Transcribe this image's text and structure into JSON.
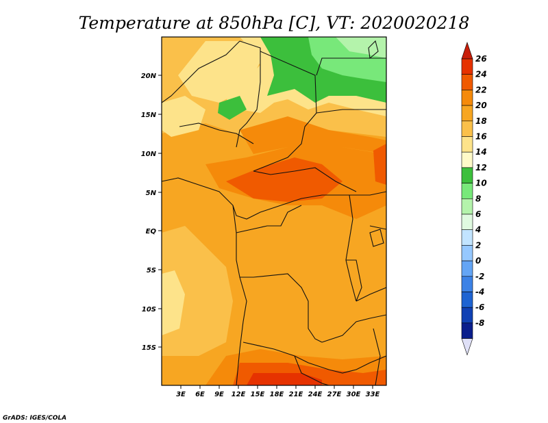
{
  "title": "Temperature at 850hPa [C], VT: 2020020218",
  "credit": "GrADS: IGES/COLA",
  "map": {
    "lat_ticks": [
      "20N",
      "15N",
      "10N",
      "5N",
      "EQ",
      "5S",
      "10S",
      "15S"
    ],
    "lon_ticks": [
      "3E",
      "6E",
      "9E",
      "12E",
      "15E",
      "18E",
      "21E",
      "24E",
      "27E",
      "30E",
      "33E"
    ]
  },
  "colorbar": {
    "labels": [
      "26",
      "24",
      "22",
      "20",
      "18",
      "16",
      "14",
      "12",
      "10",
      "8",
      "6",
      "4",
      "2",
      "0",
      "-2",
      "-4",
      "-6",
      "-8"
    ],
    "colors": [
      "#e63200",
      "#f05a00",
      "#f58a0a",
      "#f7a622",
      "#fac04a",
      "#fde38a",
      "#fffac8",
      "#3cbf3c",
      "#78e87a",
      "#b4f3ab",
      "#e0fae0",
      "#c2e4ff",
      "#96c8ff",
      "#64a5f5",
      "#3c82e6",
      "#1e64d2",
      "#1041b4",
      "#0a1e8c",
      "#08004f"
    ],
    "over_color": "#c81e0a",
    "under_color": "#dfe0f7"
  }
}
